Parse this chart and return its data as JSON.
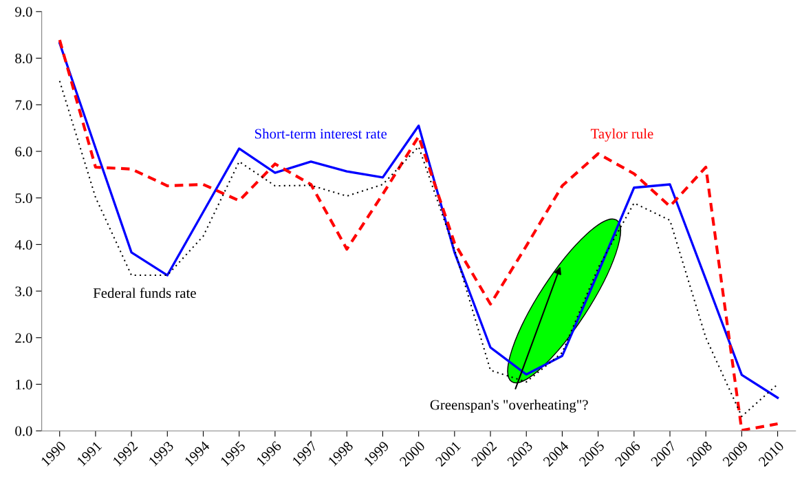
{
  "chart_data": {
    "type": "line",
    "categories": [
      "1990",
      "1991",
      "1992",
      "1993",
      "1994",
      "1995",
      "1996",
      "1997",
      "1998",
      "1999",
      "2000",
      "2001",
      "2002",
      "2003",
      "2004",
      "2005",
      "2006",
      "2007",
      "2008",
      "2009",
      "2010"
    ],
    "series": [
      {
        "name": "Short-term interest rate",
        "color": "#0000ff",
        "line_style": "solid",
        "values": [
          8.32,
          6.07,
          3.83,
          3.34,
          4.7,
          6.06,
          5.54,
          5.78,
          5.57,
          5.44,
          6.55,
          3.83,
          1.79,
          1.21,
          1.61,
          3.4,
          5.22,
          5.29,
          3.25,
          1.2,
          0.71
        ]
      },
      {
        "name": "Taylor rule",
        "color": "#ff0000",
        "line_style": "dashed",
        "values": [
          8.39,
          5.66,
          5.62,
          5.26,
          5.29,
          4.94,
          5.73,
          5.29,
          3.9,
          5.08,
          6.32,
          4.03,
          2.72,
          3.97,
          5.26,
          5.95,
          5.52,
          4.82,
          5.66,
          0.01,
          0.15
        ]
      },
      {
        "name": "Federal funds rate",
        "color": "#000000",
        "line_style": "dotted",
        "values": [
          7.51,
          5.01,
          3.34,
          3.34,
          4.18,
          5.78,
          5.26,
          5.27,
          5.04,
          5.29,
          6.1,
          3.89,
          1.3,
          1.05,
          1.68,
          3.5,
          4.89,
          4.52,
          2.0,
          0.31,
          1.0
        ]
      }
    ],
    "ylim": [
      0,
      9
    ],
    "yticks": [
      {
        "value": 0,
        "label": "0.0"
      },
      {
        "value": 1,
        "label": "1.0"
      },
      {
        "value": 2,
        "label": "2.0"
      },
      {
        "value": 3,
        "label": "3.0"
      },
      {
        "value": 4,
        "label": "4.0"
      },
      {
        "value": 5,
        "label": "5.0"
      },
      {
        "value": 6,
        "label": "6.0"
      },
      {
        "value": 7,
        "label": "7.0"
      },
      {
        "value": 8,
        "label": "8.0"
      },
      {
        "value": 9,
        "label": "9.0"
      }
    ],
    "annotations": [
      "Greenspan's \"overheating\"?"
    ],
    "grid": false,
    "legend": false,
    "marker": "none"
  }
}
